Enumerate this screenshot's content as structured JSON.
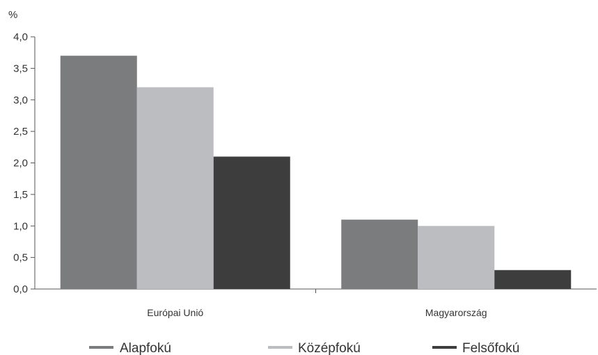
{
  "chart_data": {
    "type": "bar",
    "title": "",
    "xlabel": "",
    "ylabel": "%",
    "ylim": [
      0,
      4
    ],
    "yticks": [
      0,
      0.5,
      1,
      1.5,
      2,
      2.5,
      3,
      3.5,
      4
    ],
    "ytick_labels": [
      "0,0",
      "0,5",
      "1,0",
      "1,5",
      "2,0",
      "2,5",
      "3,0",
      "3,5",
      "4,0"
    ],
    "categories": [
      "Európai Unió",
      "Magyarország"
    ],
    "series": [
      {
        "name": "Alapfokú",
        "color": "#7b7c7e",
        "values": [
          3.7,
          1.1
        ]
      },
      {
        "name": "Középfokú",
        "color": "#bcbdc0",
        "values": [
          3.2,
          1.0
        ]
      },
      {
        "name": "Felsőfokú",
        "color": "#3d3d3d",
        "values": [
          2.1,
          0.3
        ]
      }
    ],
    "grid": false,
    "legend": "bottom"
  }
}
